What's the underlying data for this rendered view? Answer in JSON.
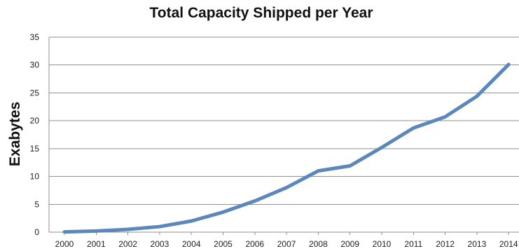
{
  "chart_data": {
    "type": "line",
    "title": "Total Capacity Shipped per Year",
    "xlabel": "",
    "ylabel": "Exabytes",
    "categories": [
      "2000",
      "2001",
      "2002",
      "2003",
      "2004",
      "2005",
      "2006",
      "2007",
      "2008",
      "2009",
      "2010",
      "2011",
      "2012",
      "2013",
      "2014"
    ],
    "series": [
      {
        "values": [
          0.05,
          0.2,
          0.5,
          1.0,
          2.0,
          3.6,
          5.6,
          8.0,
          11.0,
          11.9,
          15.2,
          18.7,
          20.7,
          24.4,
          30.1
        ],
        "color": "#5b87bd"
      }
    ],
    "ylim": [
      0,
      35
    ],
    "yticks": [
      0,
      5,
      10,
      15,
      20,
      25,
      30,
      35
    ],
    "grid": true,
    "legend": "none"
  }
}
